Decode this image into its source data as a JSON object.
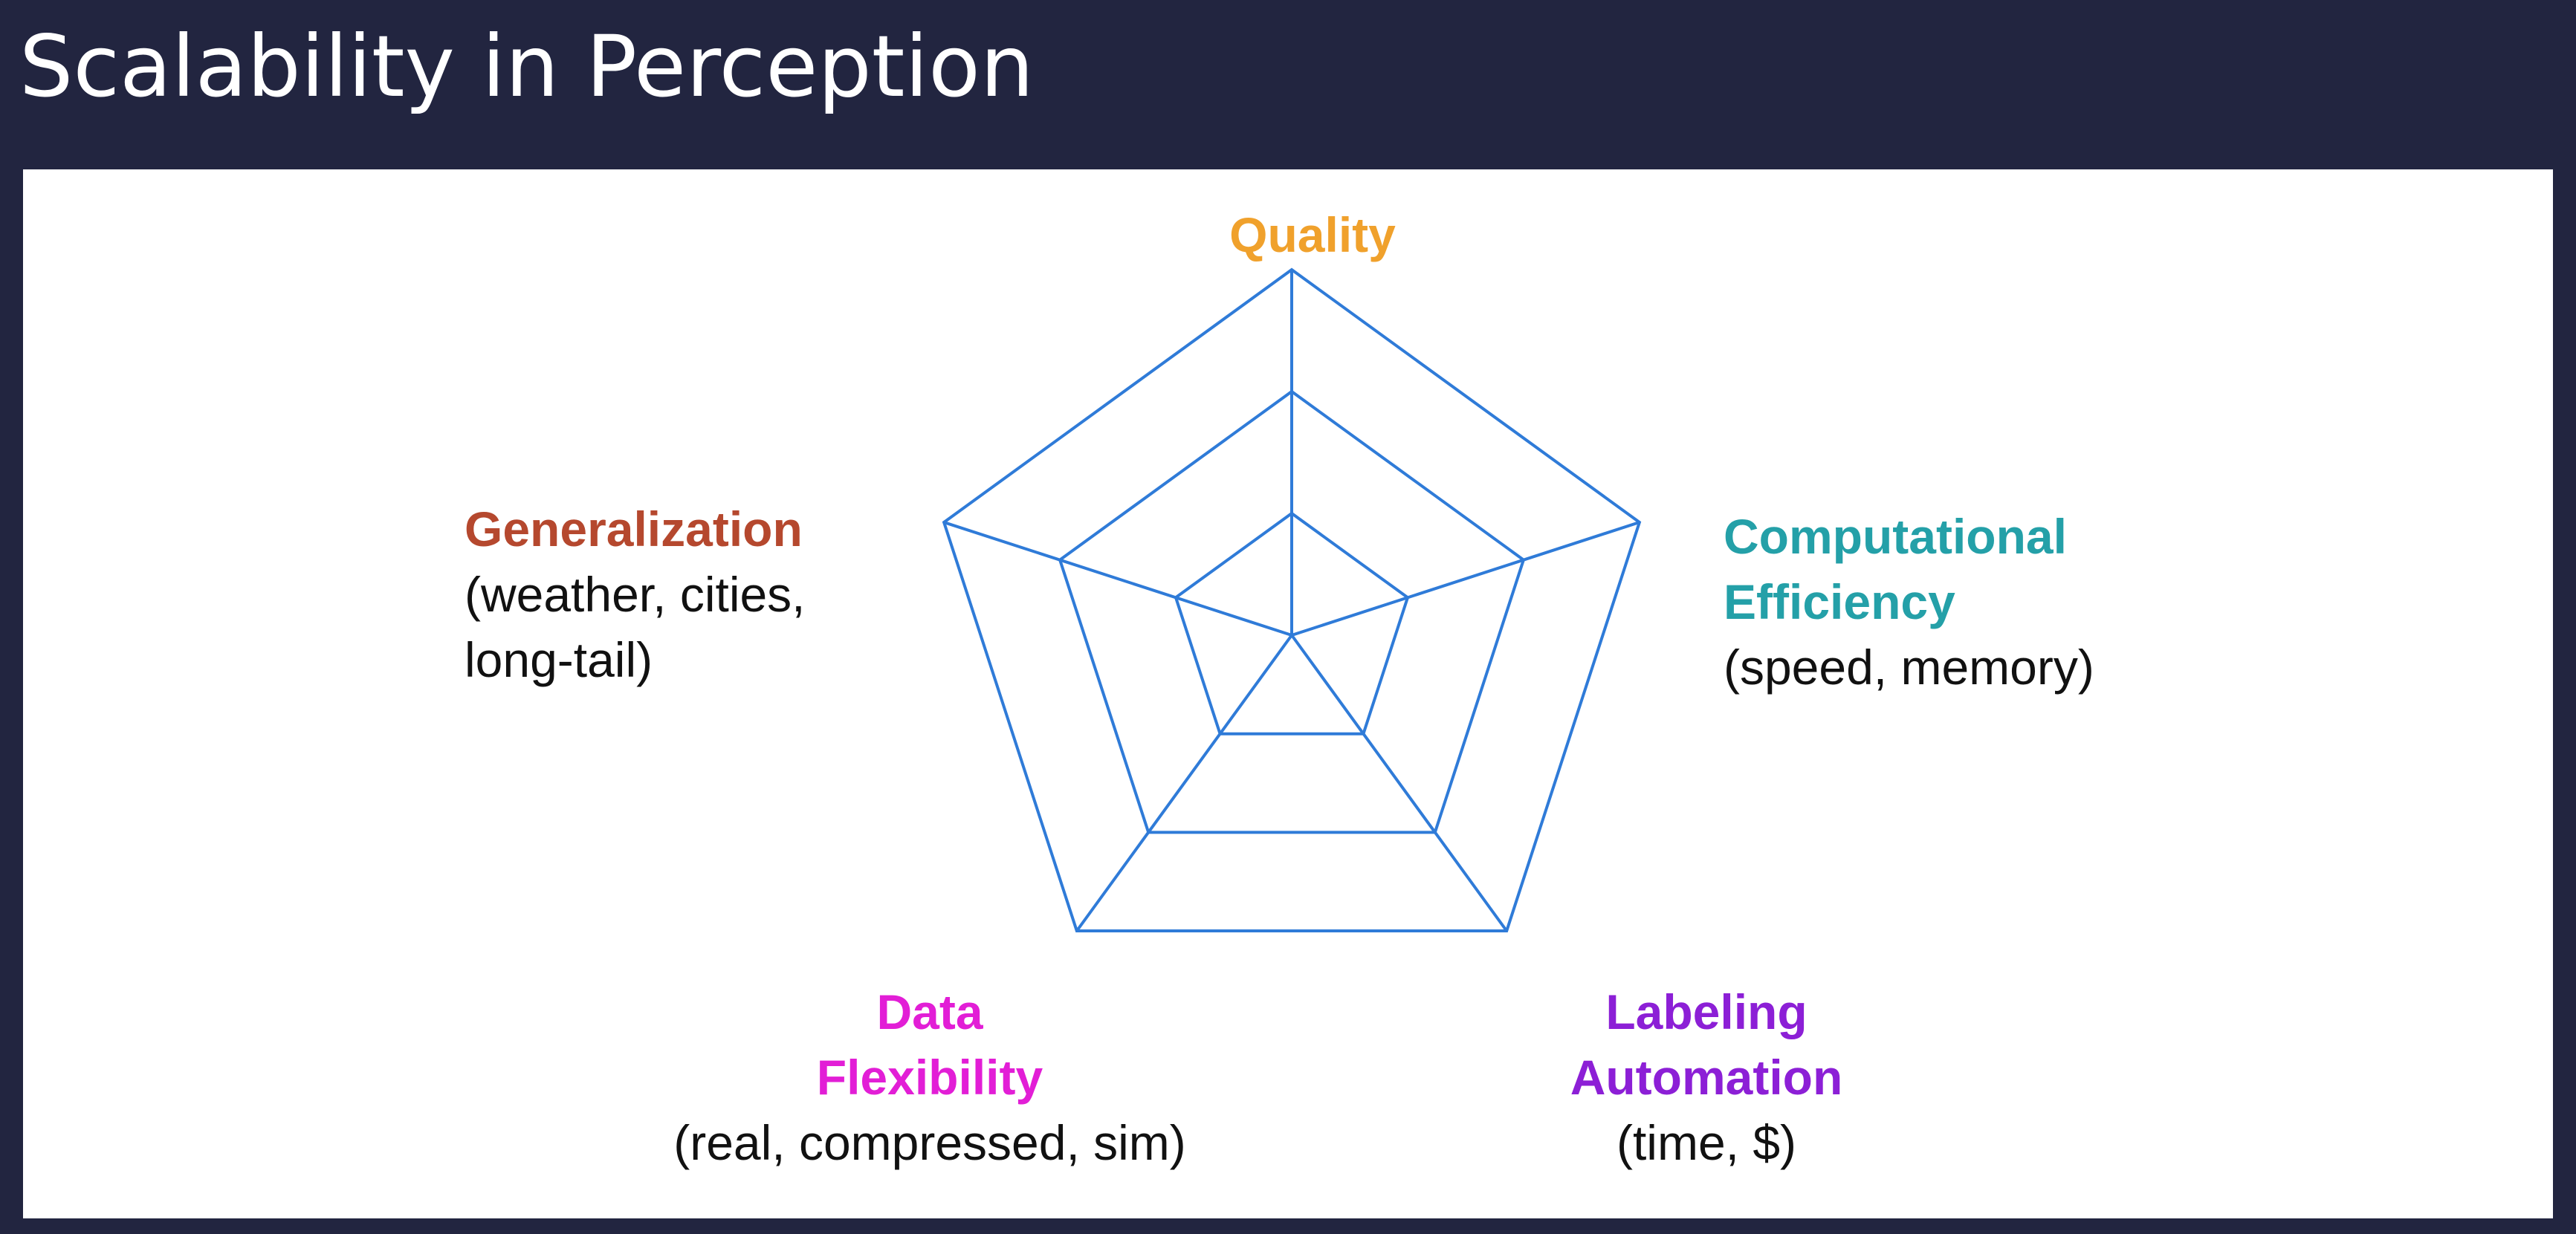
{
  "title": "Scalability in Perception",
  "diagram": {
    "type": "radar",
    "levels": 3,
    "grid_color": "#2f7bd8",
    "axes": [
      {
        "id": "quality",
        "name": "Quality",
        "detail": "",
        "color": "#f0a12c"
      },
      {
        "id": "computational-efficiency",
        "name_lines": [
          "Computational",
          "Efficiency"
        ],
        "detail": "(speed, memory)",
        "color": "#24a0a8"
      },
      {
        "id": "labeling-automation",
        "name_lines": [
          "Labeling",
          "Automation"
        ],
        "detail": "(time, $)",
        "color": "#8c1fd6"
      },
      {
        "id": "data-flexibility",
        "name_lines": [
          "Data",
          "Flexibility"
        ],
        "detail": "(real, compressed, sim)",
        "color": "#e21ed6"
      },
      {
        "id": "generalization",
        "name": "Generalization",
        "detail_lines": [
          "(weather, cities,",
          "long-tail)"
        ],
        "color": "#b5482e"
      }
    ]
  }
}
